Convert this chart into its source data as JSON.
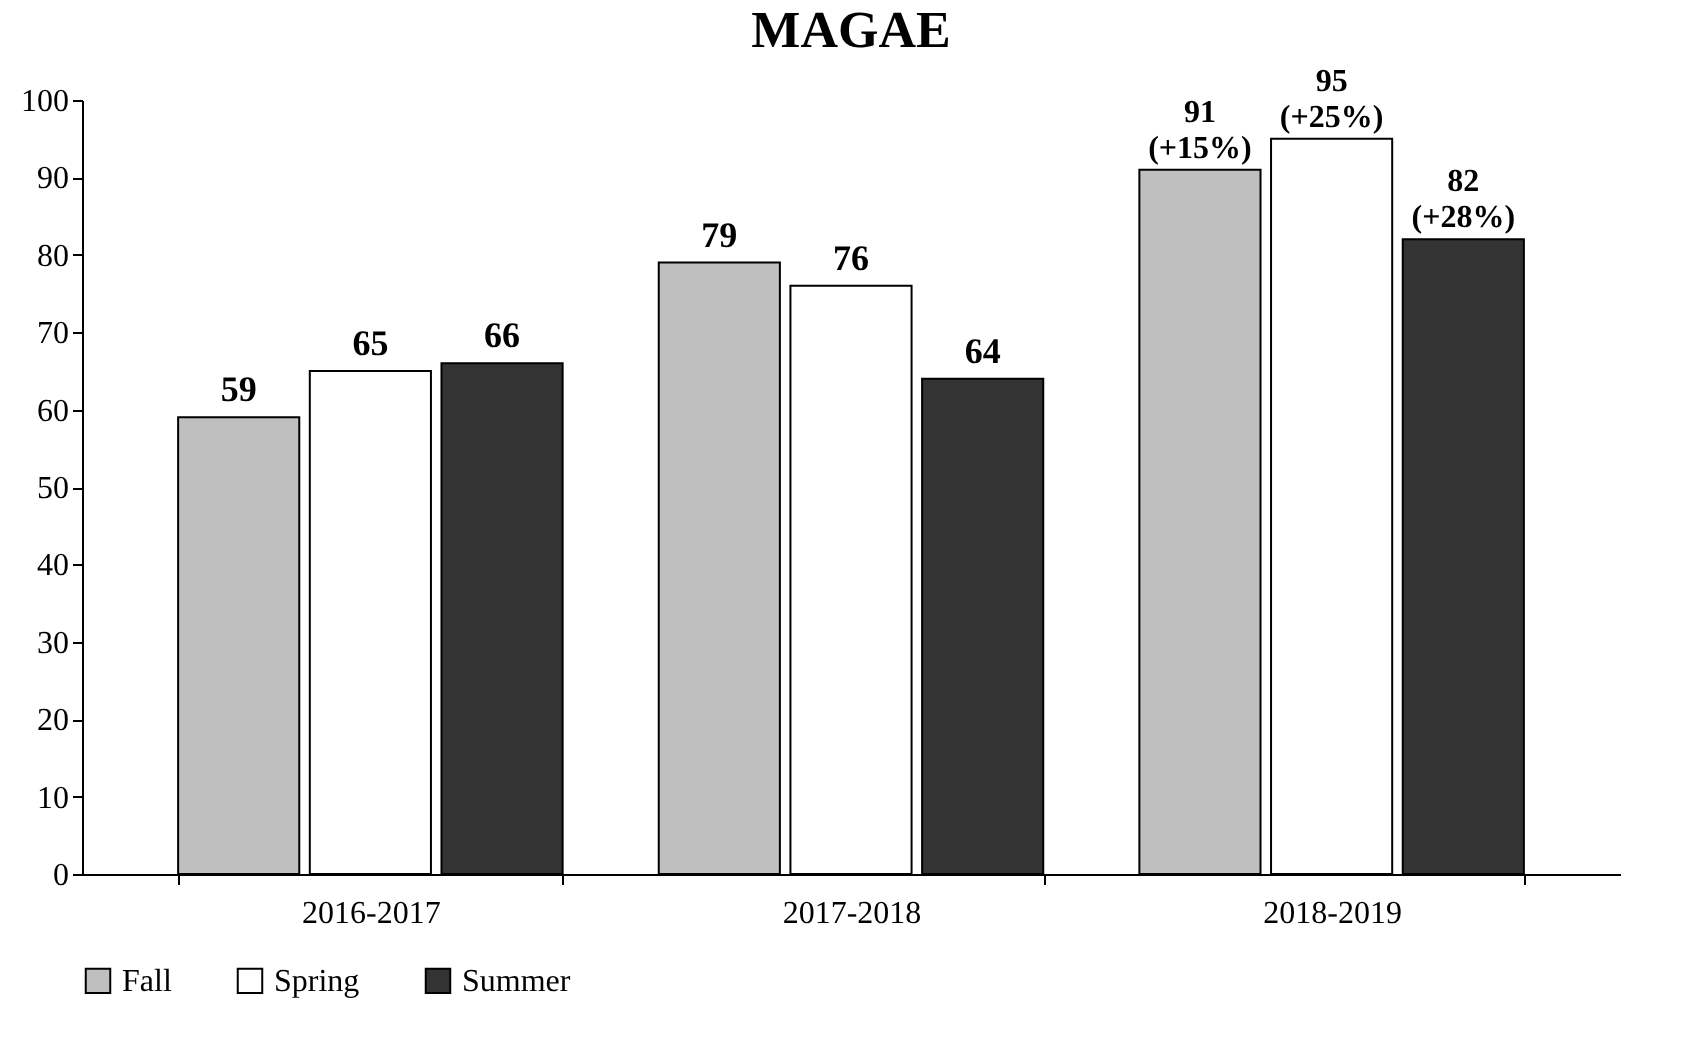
{
  "chart_data": {
    "type": "bar",
    "title": "MAGAE",
    "categories": [
      "2016-2017",
      "2017-2018",
      "2018-2019"
    ],
    "series": [
      {
        "name": "Fall",
        "color": "#bfbfbf",
        "values": [
          59,
          79,
          91
        ],
        "value_labels": [
          "59",
          "79",
          "91\n(+15%)"
        ]
      },
      {
        "name": "Spring",
        "color": "#ffffff",
        "values": [
          65,
          76,
          95
        ],
        "value_labels": [
          "65",
          "76",
          "95\n(+25%)"
        ]
      },
      {
        "name": "Summer",
        "color": "#333333",
        "values": [
          66,
          64,
          82
        ],
        "value_labels": [
          "66",
          "64",
          "82\n(+28%)"
        ]
      }
    ],
    "ylim": [
      0,
      100
    ],
    "yticks": [
      0,
      10,
      20,
      30,
      40,
      50,
      60,
      70,
      80,
      90,
      100
    ],
    "grid": false,
    "legend": "bottom"
  }
}
